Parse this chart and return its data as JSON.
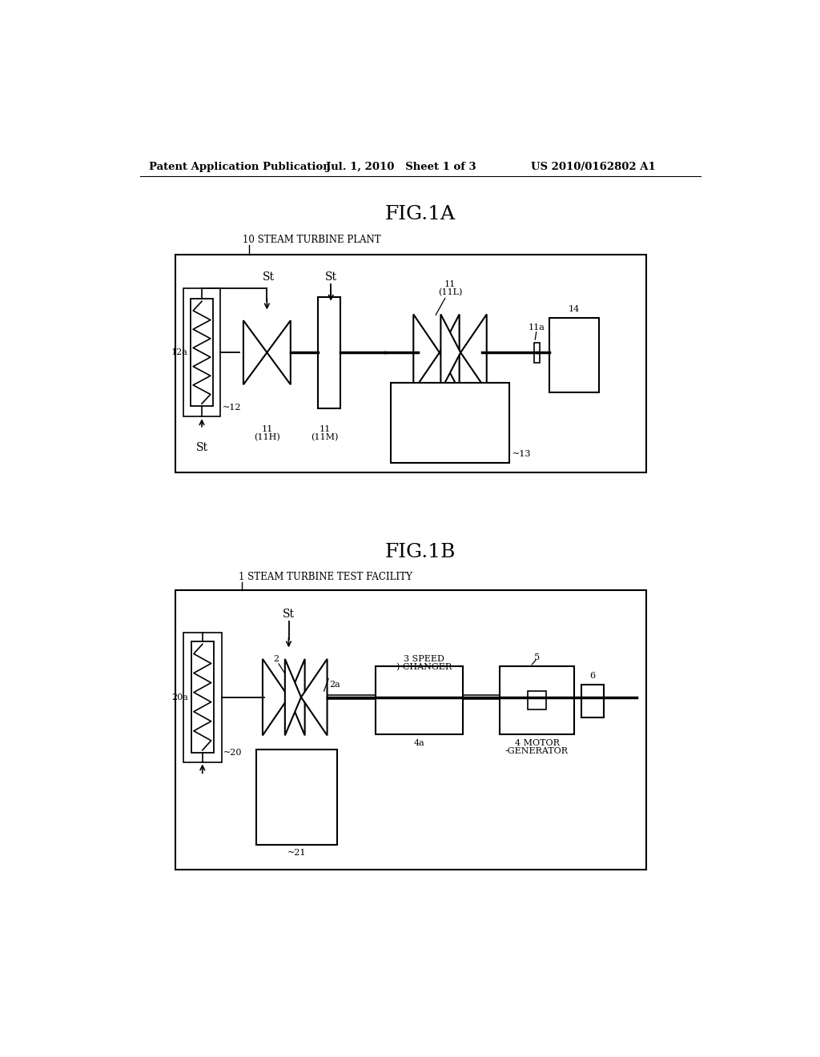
{
  "bg_color": "#ffffff",
  "header_left": "Patent Application Publication",
  "header_mid": "Jul. 1, 2010   Sheet 1 of 3",
  "header_right": "US 2010/0162802 A1",
  "fig1a_title": "FIG.1A",
  "fig1b_title": "FIG.1B",
  "fig1a_label": "10 STEAM TURBINE PLANT",
  "fig1b_label": "1 STEAM TURBINE TEST FACILITY"
}
